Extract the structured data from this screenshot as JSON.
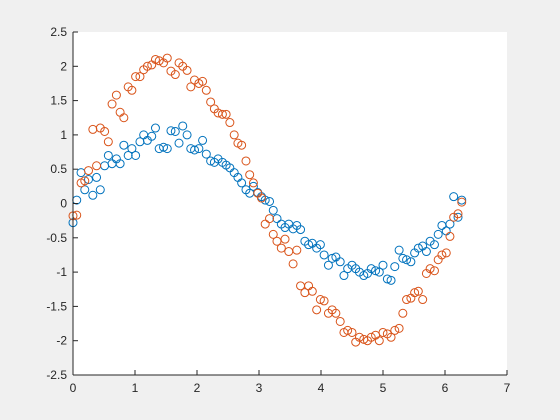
{
  "chart_data": {
    "type": "scatter",
    "title": "",
    "xlabel": "",
    "ylabel": "",
    "xlim": [
      0,
      7
    ],
    "ylim": [
      -2.5,
      2.5
    ],
    "xticks": [
      "0",
      "1",
      "2",
      "3",
      "4",
      "5",
      "6",
      "7"
    ],
    "yticks": [
      "-2.5",
      "-2",
      "-1.5",
      "-1",
      "-0.5",
      "0",
      "0.5",
      "1",
      "1.5",
      "2",
      "2.5"
    ],
    "grid": false,
    "legend": "none",
    "marker": "open-circle",
    "series": [
      {
        "color": "#0072BD",
        "x": [
          0.0,
          0.06,
          0.13,
          0.19,
          0.25,
          0.32,
          0.38,
          0.44,
          0.51,
          0.57,
          0.63,
          0.7,
          0.76,
          0.82,
          0.89,
          0.95,
          1.01,
          1.08,
          1.14,
          1.2,
          1.27,
          1.33,
          1.39,
          1.46,
          1.52,
          1.58,
          1.65,
          1.71,
          1.77,
          1.84,
          1.9,
          1.96,
          2.03,
          2.09,
          2.15,
          2.22,
          2.28,
          2.34,
          2.41,
          2.47,
          2.53,
          2.6,
          2.66,
          2.72,
          2.79,
          2.85,
          2.91,
          2.98,
          3.04,
          3.1,
          3.17,
          3.23,
          3.29,
          3.36,
          3.42,
          3.48,
          3.55,
          3.61,
          3.67,
          3.74,
          3.8,
          3.86,
          3.93,
          3.99,
          4.05,
          4.12,
          4.18,
          4.24,
          4.31,
          4.37,
          4.43,
          4.5,
          4.56,
          4.62,
          4.69,
          4.75,
          4.81,
          4.88,
          4.94,
          5.0,
          5.07,
          5.13,
          5.19,
          5.26,
          5.32,
          5.38,
          5.45,
          5.51,
          5.57,
          5.64,
          5.7,
          5.76,
          5.83,
          5.89,
          5.95,
          6.02,
          6.08,
          6.14,
          6.21,
          6.27
        ],
        "y": [
          -0.28,
          0.05,
          0.45,
          0.2,
          0.35,
          0.12,
          0.38,
          0.2,
          0.55,
          0.7,
          0.58,
          0.65,
          0.58,
          0.85,
          0.7,
          0.8,
          0.7,
          0.9,
          1.0,
          0.92,
          0.98,
          1.1,
          0.8,
          0.82,
          0.8,
          1.06,
          1.05,
          0.88,
          1.13,
          1.0,
          0.8,
          0.78,
          0.8,
          0.92,
          0.72,
          0.62,
          0.6,
          0.65,
          0.6,
          0.56,
          0.52,
          0.45,
          0.38,
          0.3,
          0.2,
          0.15,
          0.25,
          0.16,
          0.1,
          0.05,
          0.03,
          -0.1,
          -0.22,
          -0.3,
          -0.35,
          -0.3,
          -0.37,
          -0.32,
          -0.38,
          -0.55,
          -0.6,
          -0.58,
          -0.65,
          -0.6,
          -0.75,
          -0.9,
          -0.8,
          -0.78,
          -0.85,
          -1.05,
          -0.95,
          -0.9,
          -0.95,
          -1.0,
          -1.05,
          -1.02,
          -0.95,
          -0.98,
          -1.0,
          -0.9,
          -1.1,
          -1.12,
          -0.92,
          -0.68,
          -0.8,
          -0.82,
          -0.85,
          -0.72,
          -0.65,
          -0.62,
          -0.7,
          -0.55,
          -0.6,
          -0.45,
          -0.32,
          -0.4,
          -0.3,
          0.1,
          -0.2,
          0.05
        ]
      },
      {
        "color": "#D95319",
        "x": [
          0.0,
          0.06,
          0.13,
          0.19,
          0.25,
          0.32,
          0.38,
          0.44,
          0.51,
          0.57,
          0.63,
          0.7,
          0.76,
          0.82,
          0.89,
          0.95,
          1.01,
          1.08,
          1.14,
          1.2,
          1.27,
          1.33,
          1.39,
          1.46,
          1.52,
          1.58,
          1.65,
          1.71,
          1.77,
          1.84,
          1.9,
          1.96,
          2.03,
          2.09,
          2.15,
          2.22,
          2.28,
          2.34,
          2.41,
          2.47,
          2.53,
          2.6,
          2.66,
          2.72,
          2.79,
          2.85,
          2.91,
          2.98,
          3.04,
          3.1,
          3.17,
          3.23,
          3.29,
          3.36,
          3.42,
          3.48,
          3.55,
          3.61,
          3.67,
          3.74,
          3.8,
          3.86,
          3.93,
          3.99,
          4.05,
          4.12,
          4.18,
          4.24,
          4.31,
          4.37,
          4.43,
          4.5,
          4.56,
          4.62,
          4.69,
          4.75,
          4.81,
          4.88,
          4.94,
          5.0,
          5.07,
          5.13,
          5.19,
          5.26,
          5.32,
          5.38,
          5.45,
          5.51,
          5.57,
          5.64,
          5.7,
          5.76,
          5.83,
          5.89,
          5.95,
          6.02,
          6.08,
          6.14,
          6.21,
          6.27
        ],
        "y": [
          -0.18,
          -0.17,
          0.3,
          0.33,
          0.48,
          1.08,
          0.55,
          1.1,
          1.05,
          0.9,
          1.45,
          1.58,
          1.33,
          1.25,
          1.7,
          1.65,
          1.85,
          1.85,
          1.95,
          2.0,
          2.02,
          2.1,
          2.08,
          2.05,
          2.12,
          1.93,
          1.88,
          2.05,
          2.0,
          1.94,
          1.7,
          1.8,
          1.75,
          1.78,
          1.65,
          1.48,
          1.38,
          1.32,
          1.3,
          1.3,
          1.18,
          1.0,
          0.88,
          0.85,
          0.62,
          0.42,
          0.3,
          0.15,
          0.08,
          -0.3,
          -0.22,
          -0.45,
          -0.55,
          -0.65,
          -0.52,
          -0.7,
          -0.88,
          -0.68,
          -1.2,
          -1.3,
          -1.2,
          -1.28,
          -1.55,
          -1.4,
          -1.42,
          -1.6,
          -1.55,
          -1.6,
          -1.72,
          -1.88,
          -1.85,
          -1.88,
          -2.02,
          -1.95,
          -1.98,
          -2.0,
          -1.95,
          -1.92,
          -2.0,
          -1.88,
          -1.9,
          -1.95,
          -1.85,
          -1.82,
          -1.6,
          -1.4,
          -1.38,
          -1.3,
          -1.28,
          -1.4,
          -1.02,
          -0.95,
          -0.98,
          -0.82,
          -0.75,
          -0.72,
          -0.48,
          -0.2,
          -0.15,
          0.02
        ]
      }
    ]
  }
}
